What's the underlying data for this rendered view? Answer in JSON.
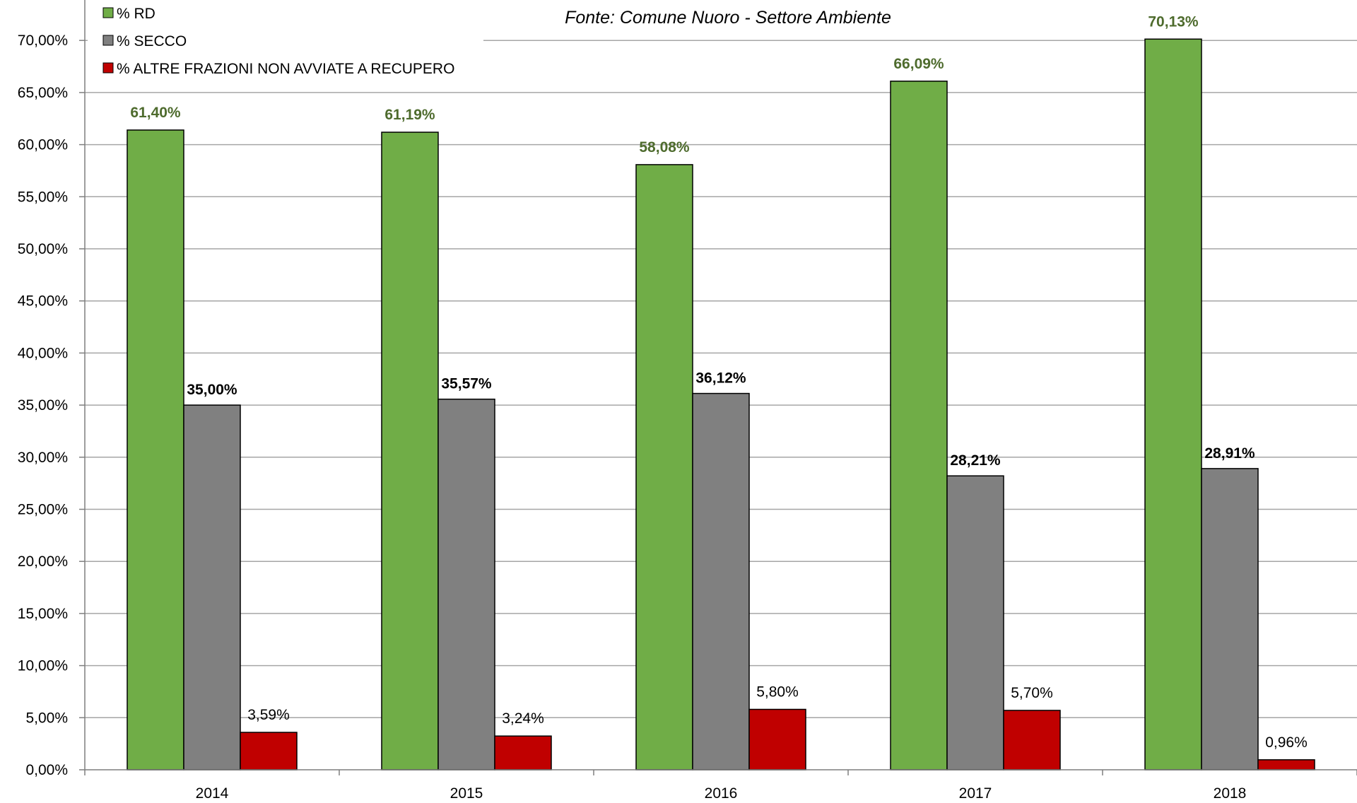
{
  "chart_data": {
    "type": "bar",
    "subtitle": "Fonte: Comune Nuoro - Settore Ambiente",
    "categories": [
      "2014",
      "2015",
      "2016",
      "2017",
      "2018"
    ],
    "series": [
      {
        "name": "% RD",
        "color": "#70ad47",
        "values": [
          61.4,
          61.19,
          58.08,
          66.09,
          70.13
        ],
        "labels": [
          "61,40%",
          "61,19%",
          "58,08%",
          "66,09%",
          "70,13%"
        ]
      },
      {
        "name": "% SECCO",
        "color": "#808080",
        "values": [
          35.0,
          35.57,
          36.12,
          28.21,
          28.91
        ],
        "labels": [
          "35,00%",
          "35,57%",
          "36,12%",
          "28,21%",
          "28,91%"
        ]
      },
      {
        "name": "% ALTRE FRAZIONI NON AVVIATE A RECUPERO",
        "color": "#c00000",
        "values": [
          3.59,
          3.24,
          5.8,
          5.7,
          0.96
        ],
        "labels": [
          "3,59%",
          "3,24%",
          "5,80%",
          "5,70%",
          "0,96%"
        ]
      }
    ],
    "yticks": [
      0,
      5,
      10,
      15,
      20,
      25,
      30,
      35,
      40,
      45,
      50,
      55,
      60,
      65,
      70
    ],
    "ytick_labels": [
      "0,00%",
      "5,00%",
      "10,00%",
      "15,00%",
      "20,00%",
      "25,00%",
      "30,00%",
      "35,00%",
      "40,00%",
      "45,00%",
      "50,00%",
      "55,00%",
      "60,00%",
      "65,00%",
      "70,00%"
    ],
    "ylim": [
      0,
      72
    ],
    "grid": true,
    "legend_position": "top-left",
    "label_styles": {
      "rd_label_color": "#4e6b2d"
    }
  }
}
